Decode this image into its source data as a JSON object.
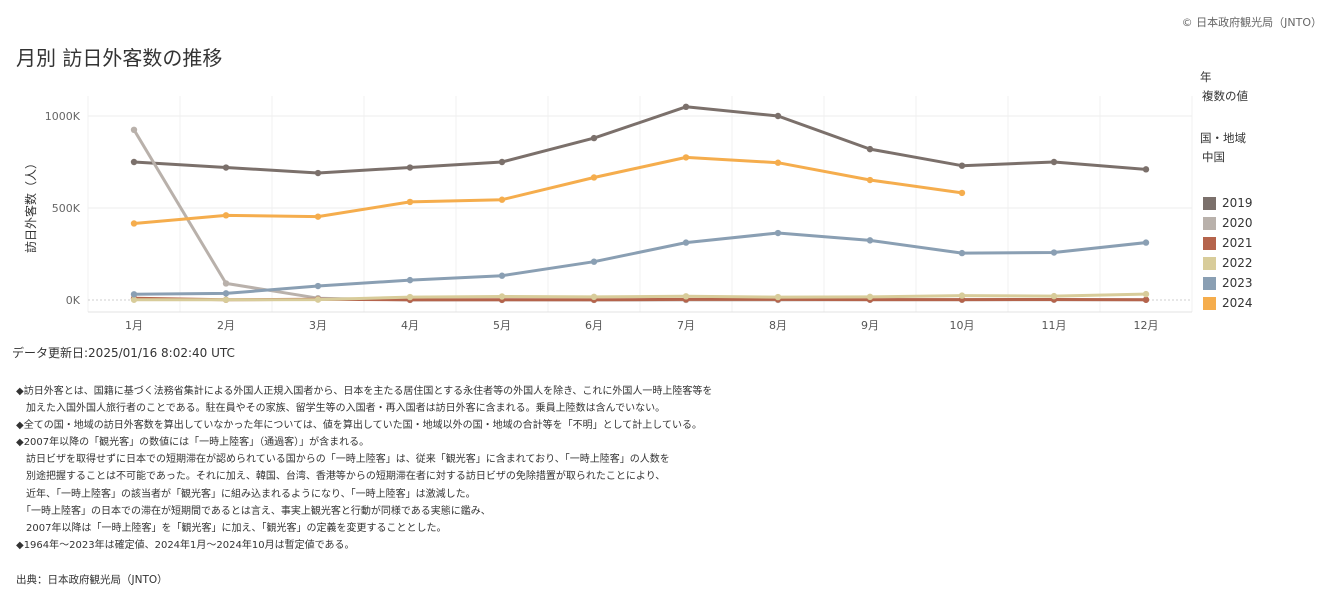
{
  "copyright": "© 日本政府観光局（JNTO）",
  "chart_data": {
    "type": "line",
    "title": "月別 訪日外客数の推移",
    "ylabel": "訪日外客数（人）",
    "xlabel": "",
    "categories": [
      "1月",
      "2月",
      "3月",
      "4月",
      "5月",
      "6月",
      "7月",
      "8月",
      "9月",
      "10月",
      "11月",
      "12月"
    ],
    "y_ticks": [
      {
        "value": 0,
        "label": "0K"
      },
      {
        "value": 500000,
        "label": "500K"
      },
      {
        "value": 1000000,
        "label": "1000K"
      }
    ],
    "ylim": [
      -60000,
      1100000
    ],
    "grid": true,
    "legend_position": "right",
    "series": [
      {
        "name": "2019",
        "color": "#7b706b",
        "values": [
          750000,
          720000,
          690000,
          720000,
          750000,
          880000,
          1050000,
          1000000,
          820000,
          730000,
          750000,
          710000
        ]
      },
      {
        "name": "2020",
        "color": "#b9b1ab",
        "values": [
          925000,
          90000,
          10000,
          200,
          300,
          200,
          300,
          400,
          1100,
          1300,
          1600,
          1400
        ]
      },
      {
        "name": "2021",
        "color": "#b5644c",
        "values": [
          9000,
          1200,
          4000,
          1200,
          1400,
          1600,
          3500,
          3200,
          2100,
          2400,
          2500,
          1100
        ]
      },
      {
        "name": "2022",
        "color": "#d8cc9a",
        "values": [
          1100,
          1100,
          2000,
          16000,
          19000,
          17000,
          20000,
          16000,
          17000,
          24000,
          21000,
          32000
        ]
      },
      {
        "name": "2023",
        "color": "#8a9fb3",
        "values": [
          31000,
          36000,
          76000,
          108000,
          132000,
          208000,
          312000,
          364000,
          324000,
          255000,
          258000,
          312000
        ]
      },
      {
        "name": "2024",
        "color": "#f5ad4d",
        "values": [
          416000,
          460000,
          453000,
          533000,
          545000,
          666000,
          775000,
          746000,
          652000,
          582000,
          null,
          null
        ]
      }
    ]
  },
  "legend": {
    "header1": "年",
    "header1_value": "複数の値",
    "header2": "国・地域",
    "header2_value": "中国"
  },
  "updated": "データ更新日:2025/01/16 8:02:40 UTC",
  "notes": [
    "◆訪日外客とは、国籍に基づく法務省集計による外国人正規入国者から、日本を主たる居住国とする永住者等の外国人を除き、これに外国人一時上陸客等を",
    "　加えた入国外国人旅行者のことである。駐在員やその家族、留学生等の入国者・再入国者は訪日外客に含まれる。乗員上陸数は含んでいない。",
    "◆全ての国・地域の訪日外客数を算出していなかった年については、値を算出していた国・地域以外の国・地域の合計等を「不明」として計上している。",
    "◆2007年以降の「観光客」の数値には「一時上陸客」（通過客）」が含まれる。",
    "　訪日ビザを取得せずに日本での短期滞在が認められている国からの「一時上陸客」は、従来「観光客」に含まれており、「一時上陸客」の人数を",
    "　別途把握することは不可能であった。それに加え、韓国、台湾、香港等からの短期滞在者に対する訪日ビザの免除措置が取られたことにより、",
    "　近年、「一時上陸客」の該当者が「観光客」に組み込まれるようになり、「一時上陸客」は激減した。",
    "　「一時上陸客」の日本での滞在が短期間であるとは言え、事実上観光客と行動が同様である実態に鑑み、",
    "　2007年以降は「一時上陸客」を「観光客」に加え、「観光客」の定義を変更することとした。",
    "◆1964年～2023年は確定値、2024年1月～2024年10月は暫定値である。"
  ],
  "source": "出典：日本政府観光局（JNTO）"
}
